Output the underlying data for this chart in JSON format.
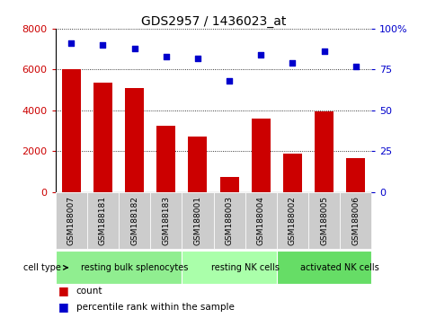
{
  "title": "GDS2957 / 1436023_at",
  "samples": [
    "GSM188007",
    "GSM188181",
    "GSM188182",
    "GSM188183",
    "GSM188001",
    "GSM188003",
    "GSM188004",
    "GSM188002",
    "GSM188005",
    "GSM188006"
  ],
  "counts": [
    6000,
    5350,
    5100,
    3250,
    2700,
    750,
    3600,
    1900,
    3950,
    1650
  ],
  "percentiles": [
    91,
    90,
    88,
    83,
    82,
    68,
    84,
    79,
    86,
    77
  ],
  "bar_color": "#cc0000",
  "dot_color": "#0000cc",
  "ylim_left": [
    0,
    8000
  ],
  "ylim_right": [
    0,
    100
  ],
  "yticks_left": [
    0,
    2000,
    4000,
    6000,
    8000
  ],
  "yticks_right": [
    0,
    25,
    50,
    75,
    100
  ],
  "cell_types": [
    {
      "label": "resting bulk splenocytes",
      "start": 0,
      "end": 4,
      "color": "#90ee90"
    },
    {
      "label": "resting NK cells",
      "start": 4,
      "end": 7,
      "color": "#aaffaa"
    },
    {
      "label": "activated NK cells",
      "start": 7,
      "end": 10,
      "color": "#66dd66"
    }
  ],
  "cell_type_label": "cell type",
  "legend_count_label": "count",
  "legend_pct_label": "percentile rank within the sample",
  "tick_bg_color": "#cccccc",
  "background_color": "#ffffff"
}
